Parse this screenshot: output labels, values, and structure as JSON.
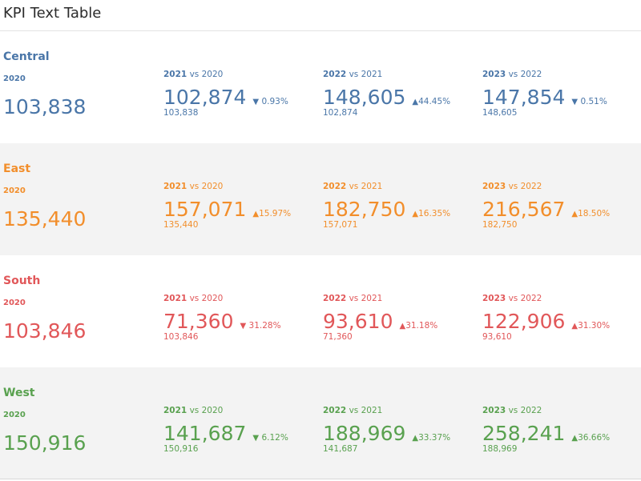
{
  "title": "KPI Text Table",
  "vs_word": "vs",
  "regions": [
    {
      "name": "Central",
      "color": "#4a76a8",
      "base_year": "2020",
      "base_value": "103,838",
      "columns": [
        {
          "year": "2021",
          "prev_year": "2020",
          "value": "102,874",
          "arrow": "▼",
          "change": "0.93%",
          "previous": "103,838"
        },
        {
          "year": "2022",
          "prev_year": "2021",
          "value": "148,605",
          "arrow": "▲",
          "change": "44.45%",
          "previous": "102,874"
        },
        {
          "year": "2023",
          "prev_year": "2022",
          "value": "147,854",
          "arrow": "▼",
          "change": "0.51%",
          "previous": "148,605"
        }
      ]
    },
    {
      "name": "East",
      "color": "#f28e2b",
      "base_year": "2020",
      "base_value": "135,440",
      "columns": [
        {
          "year": "2021",
          "prev_year": "2020",
          "value": "157,071",
          "arrow": "▲",
          "change": "15.97%",
          "previous": "135,440"
        },
        {
          "year": "2022",
          "prev_year": "2021",
          "value": "182,750",
          "arrow": "▲",
          "change": "16.35%",
          "previous": "157,071"
        },
        {
          "year": "2023",
          "prev_year": "2022",
          "value": "216,567",
          "arrow": "▲",
          "change": "18.50%",
          "previous": "182,750"
        }
      ]
    },
    {
      "name": "South",
      "color": "#e15759",
      "base_year": "2020",
      "base_value": "103,846",
      "columns": [
        {
          "year": "2021",
          "prev_year": "2020",
          "value": "71,360",
          "arrow": "▼",
          "change": "31.28%",
          "previous": "103,846"
        },
        {
          "year": "2022",
          "prev_year": "2021",
          "value": "93,610",
          "arrow": "▲",
          "change": "31.18%",
          "previous": "71,360"
        },
        {
          "year": "2023",
          "prev_year": "2022",
          "value": "122,906",
          "arrow": "▲",
          "change": "31.30%",
          "previous": "93,610"
        }
      ]
    },
    {
      "name": "West",
      "color": "#59a14f",
      "base_year": "2020",
      "base_value": "150,916",
      "columns": [
        {
          "year": "2021",
          "prev_year": "2020",
          "value": "141,687",
          "arrow": "▼",
          "change": "6.12%",
          "previous": "150,916"
        },
        {
          "year": "2022",
          "prev_year": "2021",
          "value": "188,969",
          "arrow": "▲",
          "change": "33.37%",
          "previous": "141,687"
        },
        {
          "year": "2023",
          "prev_year": "2022",
          "value": "258,241",
          "arrow": "▲",
          "change": "36.66%",
          "previous": "188,969"
        }
      ]
    }
  ]
}
